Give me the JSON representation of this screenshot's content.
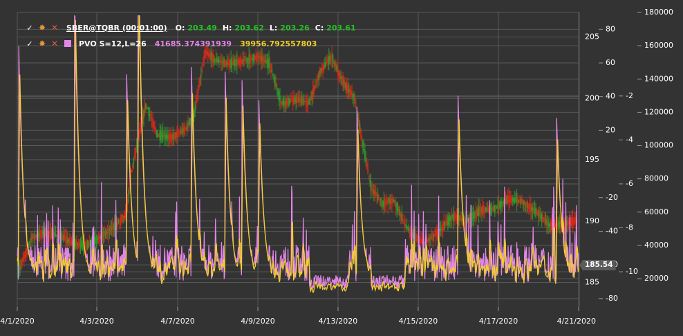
{
  "legend": {
    "candle": {
      "name": "SBER@TQBR (00:01:00)",
      "o_label": "O:",
      "o": "203.49",
      "h_label": "H:",
      "h": "203.62",
      "l_label": "L:",
      "l": "203.26",
      "c_label": "C:",
      "c": "203.61"
    },
    "pvo": {
      "name": "PVO S=12,L=26",
      "value1": "41685.374391939",
      "value2": "39956.792557803"
    },
    "icons": {
      "check": "check-icon",
      "gear": "gear-icon",
      "close": "close-icon"
    }
  },
  "price_tag": "185.54",
  "colors": {
    "background": "#333333",
    "grid": "#585858",
    "candle_up": "#2a9a2a",
    "candle_down": "#d42a1a",
    "pvo_line": "#f2cf2a",
    "pvo_signal": "#e486e8",
    "text": "#ffffff"
  },
  "chart_data": {
    "type": "line",
    "x_ticks": [
      "4/1/2020",
      "4/3/2020",
      "4/7/2020",
      "4/9/2020",
      "4/13/2020",
      "4/15/2020",
      "4/17/2020",
      "4/21/2020"
    ],
    "axes": {
      "price": {
        "ticks": [
          205,
          200,
          195,
          190,
          185
        ],
        "range": [
          183,
          207
        ]
      },
      "pvo": {
        "ticks": [
          80,
          60,
          40,
          20,
          -20,
          -40,
          -60,
          -80
        ],
        "range": [
          -85,
          90
        ]
      },
      "pvo_scaled": {
        "ticks": [
          -2,
          -4,
          -6,
          -8,
          -10
        ],
        "range": [
          -11.6,
          1.8
        ]
      },
      "volume": {
        "ticks": [
          180000,
          160000,
          140000,
          120000,
          100000,
          80000,
          60000,
          40000,
          20000
        ],
        "range": [
          3000,
          180000
        ]
      }
    },
    "series": [
      {
        "name": "SBER@TQBR (00:01:00)",
        "kind": "candles",
        "x": [
          0,
          0.5,
          1,
          1.5,
          2,
          2.5,
          3,
          3.5,
          3.9,
          4.05,
          4.3,
          4.6,
          5,
          5.5,
          6,
          6.3,
          6.7,
          7,
          7.5,
          8,
          8.6,
          9,
          9.4,
          9.8,
          10,
          10.4,
          10.8,
          11.2,
          11.6,
          12,
          12.6,
          13,
          13.4,
          14,
          14.5,
          15,
          15.5,
          16,
          16.5,
          17,
          17.5,
          18,
          18.5,
          19,
          19.5,
          20
        ],
        "y": [
          185.6,
          188.6,
          189.1,
          188.8,
          188.2,
          188.0,
          188.7,
          189.6,
          190.6,
          193.6,
          196.5,
          199.5,
          197.0,
          196.8,
          197.5,
          198.7,
          203.8,
          203.2,
          202.8,
          203.0,
          203.4,
          202.8,
          199.6,
          199.8,
          199.9,
          199.6,
          202.2,
          203.4,
          201.3,
          200.1,
          192.8,
          191.4,
          191.7,
          189.0,
          188.2,
          189.1,
          190.4,
          190.0,
          190.9,
          191.0,
          191.8,
          191.6,
          190.7,
          189.6,
          189.8,
          190.1
        ]
      },
      {
        "name": "PVO S=12,L=26",
        "kind": "line",
        "peaks": [
          [
            0.05,
            74
          ],
          [
            2.05,
            113
          ],
          [
            3.9,
            63
          ],
          [
            4.3,
            149
          ],
          [
            6.2,
            62
          ],
          [
            7.4,
            60
          ],
          [
            8.0,
            55
          ],
          [
            8.6,
            43
          ],
          [
            12.1,
            35
          ],
          [
            15.7,
            44
          ],
          [
            19.2,
            38
          ]
        ]
      }
    ]
  }
}
